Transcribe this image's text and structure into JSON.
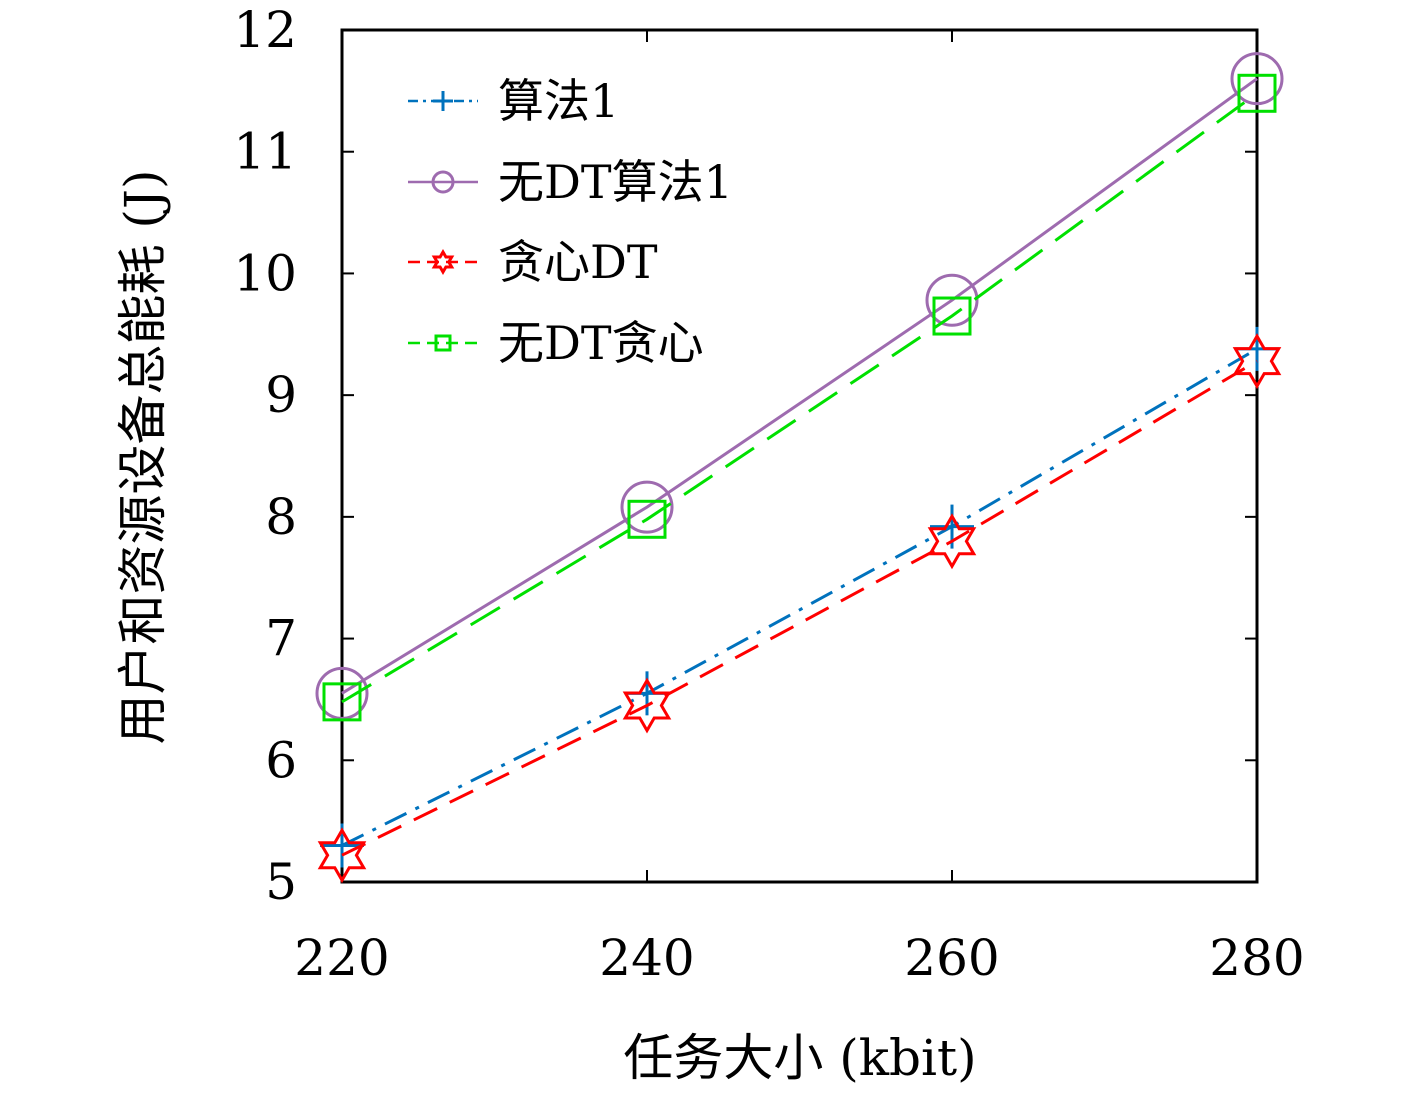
{
  "chart_data": {
    "type": "line",
    "title": "",
    "xlabel": "任务大小 (kbit)",
    "ylabel": "用户和资源设备总能耗 (J)",
    "x": [
      220,
      240,
      260,
      280
    ],
    "xticks": [
      "220",
      "240",
      "260",
      "280"
    ],
    "yticks": [
      "5",
      "6",
      "7",
      "8",
      "9",
      "10",
      "11",
      "12"
    ],
    "xlim": [
      220,
      280
    ],
    "ylim": [
      5,
      12
    ],
    "grid": false,
    "legend_position": "top-left",
    "series": [
      {
        "name": "算法1",
        "values": [
          5.3,
          6.55,
          7.92,
          9.38
        ],
        "color": "#0072BD",
        "marker": "plus",
        "line": "dashdot"
      },
      {
        "name": "无DT算法1",
        "values": [
          6.55,
          8.08,
          9.78,
          11.6
        ],
        "color": "#9E6BAF",
        "marker": "circle",
        "line": "solid"
      },
      {
        "name": "贪心DT",
        "values": [
          5.22,
          6.45,
          7.8,
          9.28
        ],
        "color": "#FF0000",
        "marker": "hexagram",
        "line": "dashed"
      },
      {
        "name": "无DT贪心",
        "values": [
          6.48,
          7.98,
          9.65,
          11.48
        ],
        "color": "#00E000",
        "marker": "square",
        "line": "longdash"
      }
    ]
  }
}
